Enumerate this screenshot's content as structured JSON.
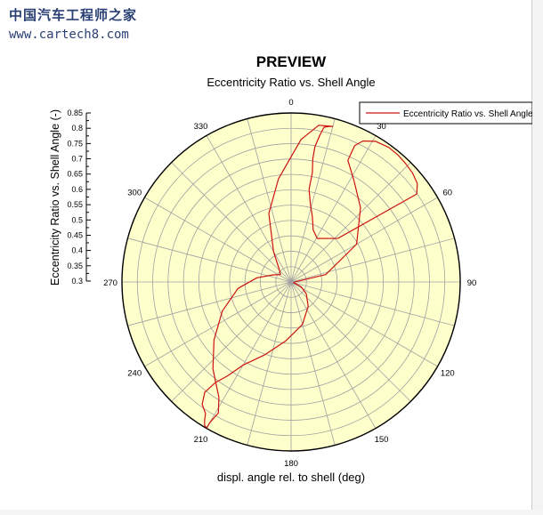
{
  "watermark": {
    "title": "中国汽车工程师之家",
    "url": "www.cartech8.com"
  },
  "preview_label": "PREVIEW",
  "chart_data": {
    "type": "polar-line",
    "title": "Eccentricity Ratio vs. Shell Angle",
    "angular_axis_label": "displ. angle rel. to shell (deg)",
    "radial_axis_label": "Eccentricity Ratio vs. Shell Angle (-)",
    "radial_range": [
      0.3,
      0.85
    ],
    "radial_ticks": [
      "0.3",
      "0.35",
      "0.4",
      "0.45",
      "0.5",
      "0.55",
      "0.6",
      "0.65",
      "0.7",
      "0.75",
      "0.8",
      "0.85"
    ],
    "angular_ticks": [
      "0",
      "30",
      "60",
      "90",
      "120",
      "150",
      "180",
      "210",
      "240",
      "270",
      "300",
      "330"
    ],
    "grid": true,
    "legend_position": "top-right",
    "colors": {
      "plot_background": "#ffffcc",
      "series": "#cc1111",
      "grid": "#a0a0a0"
    },
    "series": [
      {
        "name": "Eccentricity Ratio vs. Shell Angle",
        "angle": [
          55,
          52,
          48,
          44,
          40,
          36,
          31,
          27,
          25,
          25,
          32,
          43,
          60,
          78,
          92,
          104,
          116,
          128,
          145,
          165,
          185,
          200,
          210,
          214,
          217,
          218,
          216,
          213,
          212,
          211,
          210,
          210,
          209,
          212,
          222,
          233,
          247,
          263,
          277,
          292,
          305,
          317,
          330,
          342,
          353,
          4,
          10,
          15,
          14,
          12,
          11,
          10,
          10,
          11,
          11,
          14,
          18,
          23,
          31,
          47
        ],
        "r": [
          0.799,
          0.821,
          0.831,
          0.836,
          0.84,
          0.841,
          0.834,
          0.815,
          0.79,
          0.737,
          0.687,
          0.631,
          0.546,
          0.415,
          0.311,
          0.309,
          0.337,
          0.363,
          0.397,
          0.443,
          0.492,
          0.553,
          0.613,
          0.668,
          0.711,
          0.756,
          0.792,
          0.811,
          0.831,
          0.846,
          0.848,
          0.827,
          0.788,
          0.743,
          0.68,
          0.614,
          0.543,
          0.474,
          0.412,
          0.362,
          0.342,
          0.357,
          0.414,
          0.534,
          0.638,
          0.765,
          0.818,
          0.824,
          0.822,
          0.815,
          0.784,
          0.747,
          0.707,
          0.662,
          0.607,
          0.56,
          0.524,
          0.484,
          0.465,
          0.508
        ]
      }
    ]
  }
}
